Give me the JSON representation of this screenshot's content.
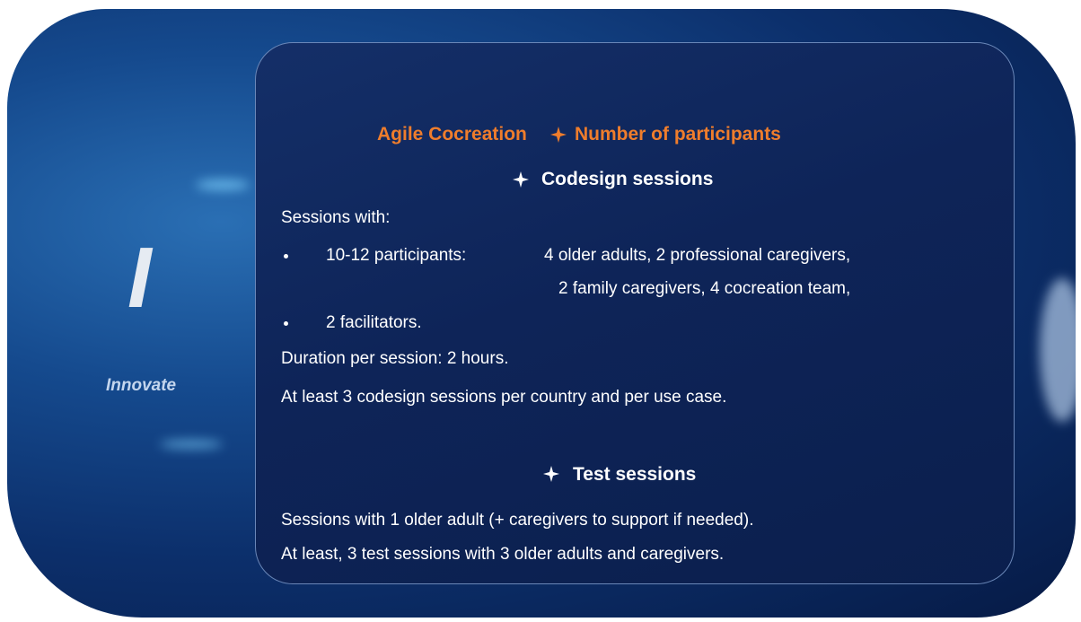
{
  "sidebar": {
    "letter": "I",
    "label": "Innovate"
  },
  "panel": {
    "title": [
      "Agile Cocreation",
      "Number of participants"
    ],
    "sections": [
      {
        "heading": "Codesign sessions",
        "intro": "Sessions with:",
        "bullets": [
          {
            "label": "10-12 participants:",
            "details": [
              "4 older adults, 2 professional caregivers,",
              "2 family caregivers, 4 cocreation team,"
            ]
          },
          {
            "label": "2 facilitators."
          }
        ],
        "lines": [
          "Duration per session: 2 hours.",
          "At least 3 codesign sessions per country and per use case."
        ]
      },
      {
        "heading": "Test sessions",
        "lines": [
          "Sessions with 1 older adult (+ caregivers to support if needed).",
          "At least, 3 test sessions with 3 older adults and caregivers."
        ]
      }
    ]
  }
}
